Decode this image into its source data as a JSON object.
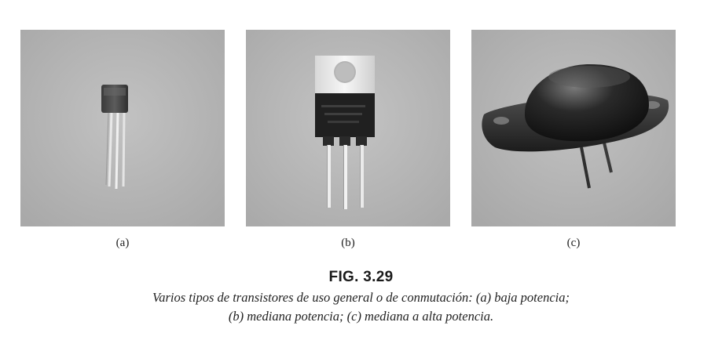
{
  "figure": {
    "number": "FIG. 3.29",
    "caption_line1": "Varios tipos de transistores de uso general o de conmutación: (a) baja potencia;",
    "caption_line2": "(b) mediana potencia; (c) mediana a alta potencia."
  },
  "panels": [
    {
      "label": "(a)",
      "subject": "low-power transistor (TO-92)"
    },
    {
      "label": "(b)",
      "subject": "medium-power transistor (TO-220)"
    },
    {
      "label": "(c)",
      "subject": "medium-to-high-power transistor (TO-3)"
    }
  ]
}
